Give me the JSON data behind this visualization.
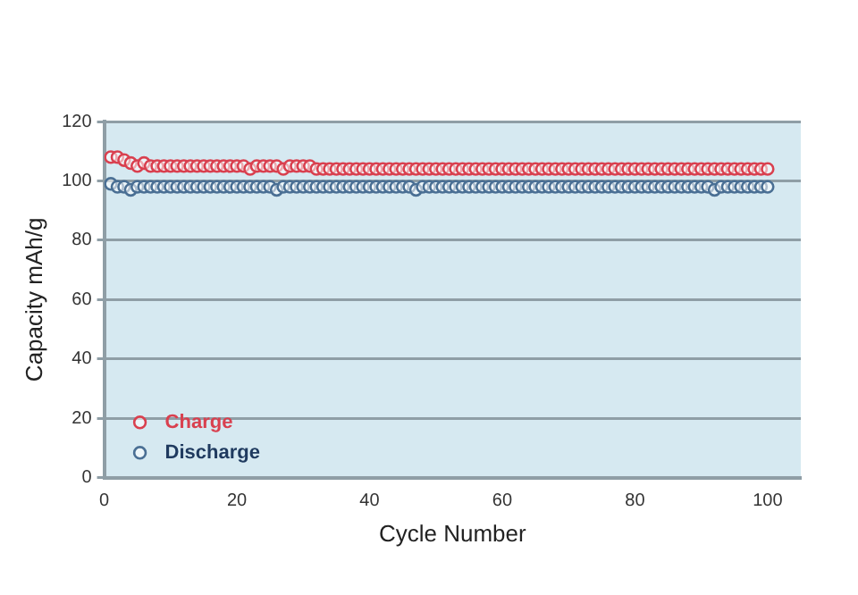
{
  "chart_data": {
    "type": "scatter",
    "xlabel": "Cycle Number",
    "ylabel": "Capacity mAh/g",
    "x": [
      1,
      2,
      3,
      4,
      5,
      6,
      7,
      8,
      9,
      10,
      11,
      12,
      13,
      14,
      15,
      16,
      17,
      18,
      19,
      20,
      21,
      22,
      23,
      24,
      25,
      26,
      27,
      28,
      29,
      30,
      31,
      32,
      33,
      34,
      35,
      36,
      37,
      38,
      39,
      40,
      41,
      42,
      43,
      44,
      45,
      46,
      47,
      48,
      49,
      50,
      51,
      52,
      53,
      54,
      55,
      56,
      57,
      58,
      59,
      60,
      61,
      62,
      63,
      64,
      65,
      66,
      67,
      68,
      69,
      70,
      71,
      72,
      73,
      74,
      75,
      76,
      77,
      78,
      79,
      80,
      81,
      82,
      83,
      84,
      85,
      86,
      87,
      88,
      89,
      90,
      91,
      92,
      93,
      94,
      95,
      96,
      97,
      98,
      99,
      100
    ],
    "series": [
      {
        "name": "Charge",
        "color": "#d9404f",
        "values": [
          108,
          108,
          107,
          106,
          105,
          106,
          105,
          105,
          105,
          105,
          105,
          105,
          105,
          105,
          105,
          105,
          105,
          105,
          105,
          105,
          105,
          104,
          105,
          105,
          105,
          105,
          104,
          105,
          105,
          105,
          105,
          104,
          104,
          104,
          104,
          104,
          104,
          104,
          104,
          104,
          104,
          104,
          104,
          104,
          104,
          104,
          104,
          104,
          104,
          104,
          104,
          104,
          104,
          104,
          104,
          104,
          104,
          104,
          104,
          104,
          104,
          104,
          104,
          104,
          104,
          104,
          104,
          104,
          104,
          104,
          104,
          104,
          104,
          104,
          104,
          104,
          104,
          104,
          104,
          104,
          104,
          104,
          104,
          104,
          104,
          104,
          104,
          104,
          104,
          104,
          104,
          104,
          104,
          104,
          104,
          104,
          104,
          104,
          104,
          104
        ]
      },
      {
        "name": "Discharge",
        "color": "#4a6f94",
        "values": [
          99,
          98,
          98,
          97,
          98,
          98,
          98,
          98,
          98,
          98,
          98,
          98,
          98,
          98,
          98,
          98,
          98,
          98,
          98,
          98,
          98,
          98,
          98,
          98,
          98,
          97,
          98,
          98,
          98,
          98,
          98,
          98,
          98,
          98,
          98,
          98,
          98,
          98,
          98,
          98,
          98,
          98,
          98,
          98,
          98,
          98,
          97,
          98,
          98,
          98,
          98,
          98,
          98,
          98,
          98,
          98,
          98,
          98,
          98,
          98,
          98,
          98,
          98,
          98,
          98,
          98,
          98,
          98,
          98,
          98,
          98,
          98,
          98,
          98,
          98,
          98,
          98,
          98,
          98,
          98,
          98,
          98,
          98,
          98,
          98,
          98,
          98,
          98,
          98,
          98,
          98,
          97,
          98,
          98,
          98,
          98,
          98,
          98,
          98,
          98
        ]
      }
    ],
    "xlim": [
      0,
      105
    ],
    "xticks": [
      0,
      20,
      40,
      60,
      80,
      100
    ],
    "ylim": [
      0,
      120
    ],
    "yticks": [
      0,
      20,
      40,
      60,
      80,
      100,
      120
    ],
    "grid": "y",
    "legend": "bottom left",
    "marker": "circle"
  }
}
